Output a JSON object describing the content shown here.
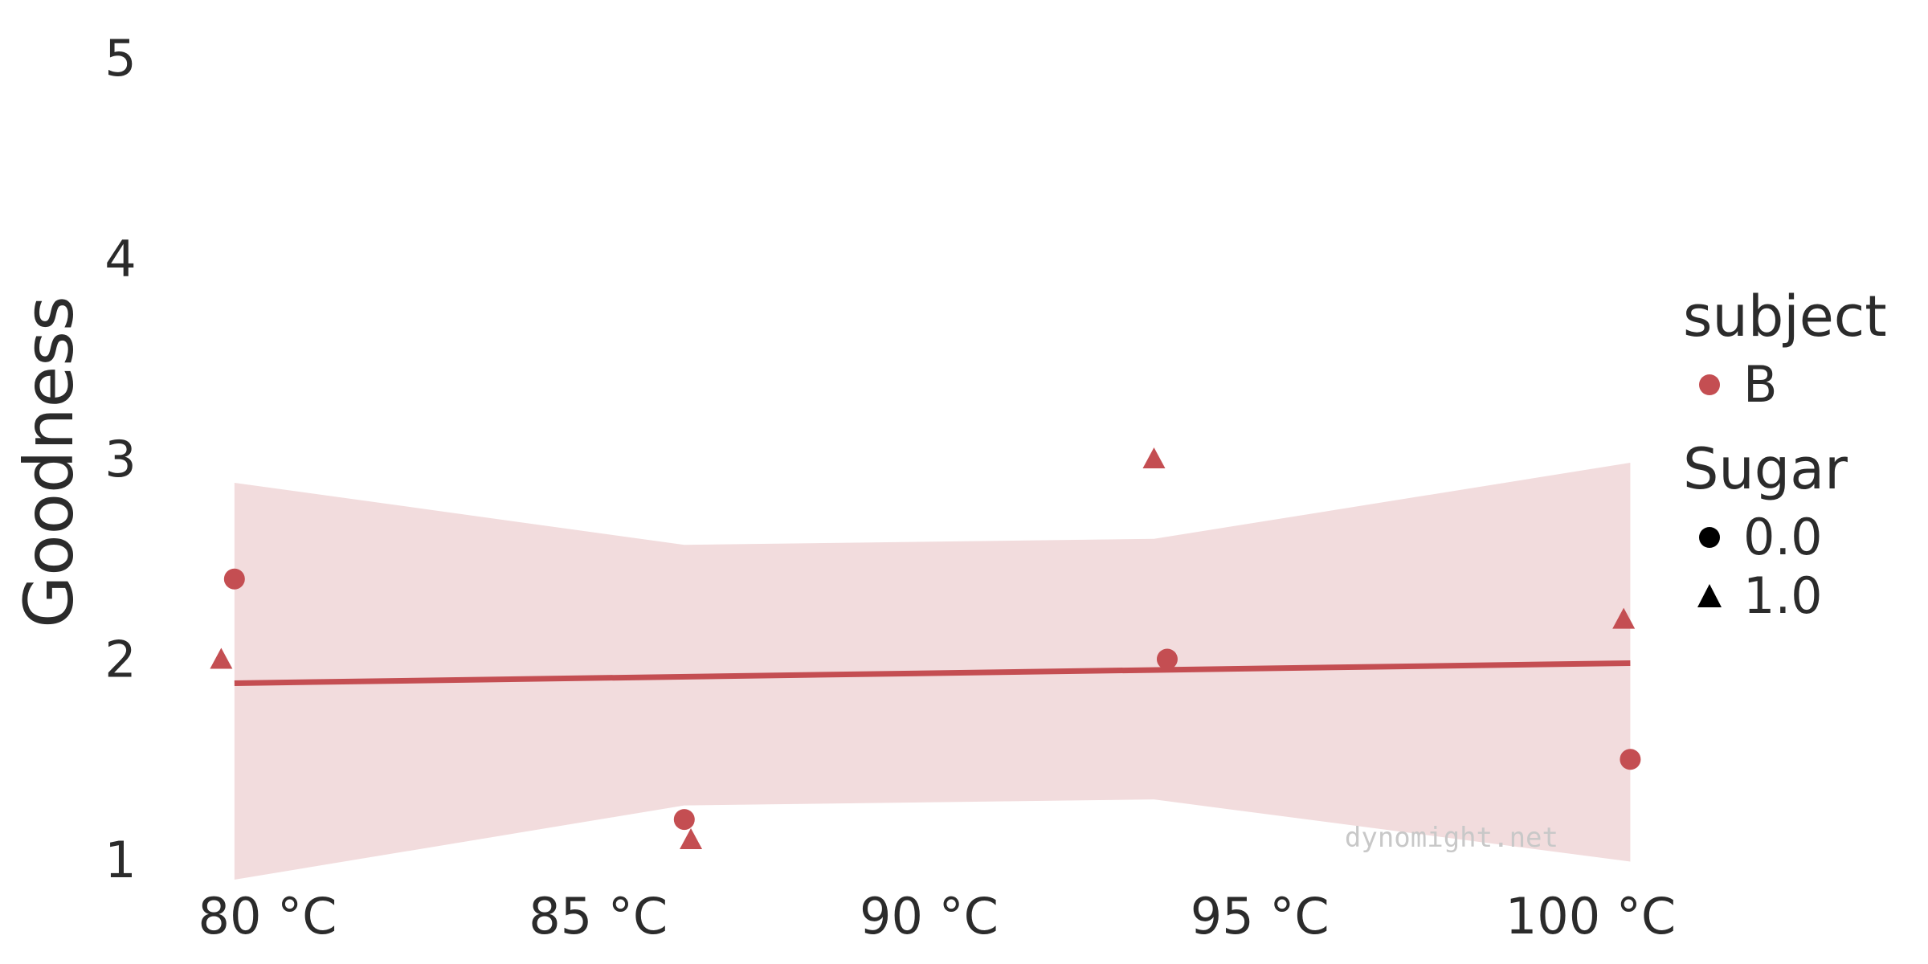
{
  "chart_data": {
    "type": "scatter",
    "ylabel": "Goodness",
    "xlabel": "",
    "ylim": [
      0.9,
      5.1
    ],
    "xlim": [
      78.5,
      101.5
    ],
    "y_ticks": [
      "1",
      "2",
      "3",
      "4",
      "5"
    ],
    "x_ticks": [
      "80 °C",
      "85 °C",
      "90 °C",
      "95 °C",
      "100 °C"
    ],
    "grid": false,
    "legend_position": "right",
    "points": [
      {
        "x": 79.5,
        "y": 2.4,
        "sugar": 0.0
      },
      {
        "x": 79.3,
        "y": 2.0,
        "sugar": 1.0
      },
      {
        "x": 86.3,
        "y": 1.2,
        "sugar": 0.0
      },
      {
        "x": 86.4,
        "y": 1.1,
        "sugar": 1.0
      },
      {
        "x": 93.4,
        "y": 3.0,
        "sugar": 1.0
      },
      {
        "x": 93.6,
        "y": 2.0,
        "sugar": 0.0
      },
      {
        "x": 100.5,
        "y": 2.2,
        "sugar": 1.0
      },
      {
        "x": 100.6,
        "y": 1.5,
        "sugar": 0.0
      }
    ],
    "fit_line": {
      "x": [
        79.5,
        100.6
      ],
      "y": [
        1.88,
        1.98
      ]
    },
    "confidence_band": {
      "x": [
        79.5,
        86.3,
        93.4,
        100.6
      ],
      "upper": [
        2.88,
        2.57,
        2.6,
        2.98
      ],
      "lower": [
        0.9,
        1.27,
        1.3,
        0.99
      ]
    }
  },
  "legend": {
    "subject_title": "subject",
    "subject_items": [
      {
        "label": "B",
        "color": "#c44e52"
      }
    ],
    "sugar_title": "Sugar",
    "sugar_items": [
      {
        "label": "0.0",
        "marker": "circle"
      },
      {
        "label": "1.0",
        "marker": "triangle"
      }
    ]
  },
  "watermark": "dynomight.net",
  "colors": {
    "series": "#c44e52",
    "band": "#f2dcdd",
    "text": "#2b2b2b",
    "marker_legend": "#000000"
  }
}
